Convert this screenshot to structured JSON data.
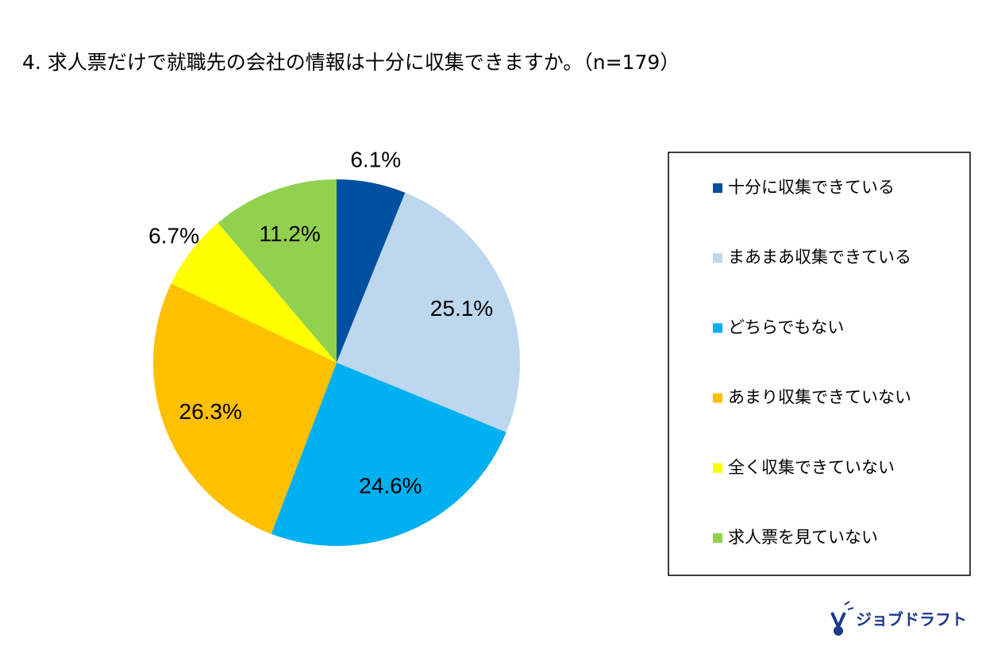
{
  "chart_data": {
    "type": "pie",
    "title": "4. 求人票だけで就職先の会社の情報は十分に収集できますか。（n=179）",
    "categories": [
      "十分に収集できている",
      "まあまあ収集できている",
      "どちらでもない",
      "あまり収集できていない",
      "全く収集できていない",
      "求人票を見ていない"
    ],
    "values": [
      6.1,
      25.1,
      24.6,
      26.3,
      6.7,
      11.2
    ],
    "value_labels": [
      "6.1%",
      "25.1%",
      "24.6%",
      "26.3%",
      "6.7%",
      "11.2%"
    ],
    "colors": [
      "#0050a0",
      "#bdd7ee",
      "#00b0f0",
      "#ffc000",
      "#ffff00",
      "#92d050"
    ],
    "legend": "right"
  },
  "logo": {
    "text": "ジョブドラフト"
  }
}
